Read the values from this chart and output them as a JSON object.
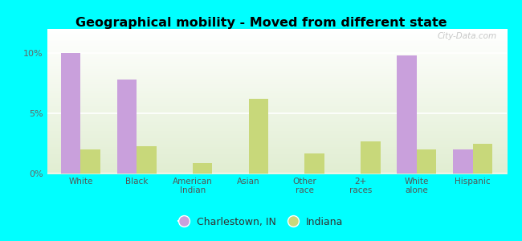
{
  "title": "Geographical mobility - Moved from different state",
  "categories": [
    "White",
    "Black",
    "American\nIndian",
    "Asian",
    "Other\nrace",
    "2+\nraces",
    "White\nalone",
    "Hispanic"
  ],
  "charlestown_values": [
    10.0,
    7.8,
    0.0,
    0.0,
    0.0,
    0.0,
    9.8,
    2.0
  ],
  "indiana_values": [
    2.0,
    2.3,
    0.9,
    6.2,
    1.7,
    2.7,
    2.0,
    2.5
  ],
  "charlestown_color": "#c9a0dc",
  "indiana_color": "#c8d87a",
  "plot_bg_top": "#e8f5f0",
  "plot_bg_bottom": "#d4ebb0",
  "outer_background": "#00ffff",
  "ylim": [
    0,
    12
  ],
  "yticks": [
    0,
    5,
    10
  ],
  "ytick_labels": [
    "0%",
    "5%",
    "10%"
  ],
  "bar_width": 0.35,
  "legend_labels": [
    "Charlestown, IN",
    "Indiana"
  ],
  "watermark": "City-Data.com"
}
